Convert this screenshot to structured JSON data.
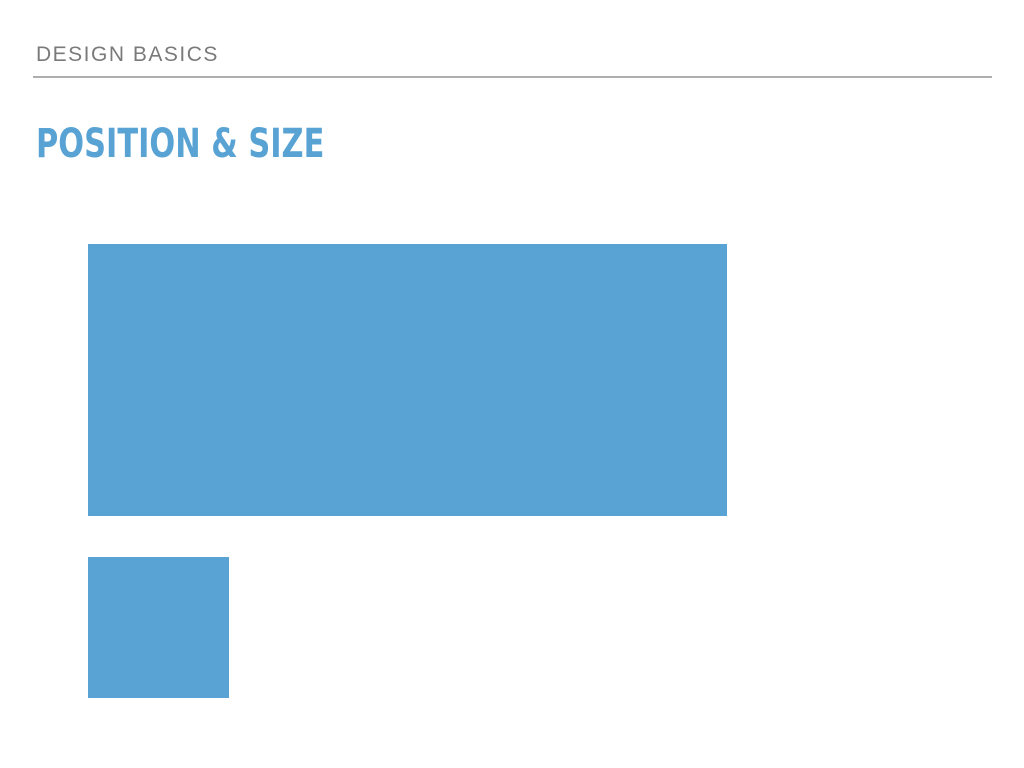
{
  "slide": {
    "section_label": "DESIGN BASICS",
    "title": "POSITION & SIZE"
  },
  "colors": {
    "accent": "#58a3d4",
    "section_label": "#7a7a7a",
    "rule": "#aeaeae",
    "background": "#ffffff"
  }
}
